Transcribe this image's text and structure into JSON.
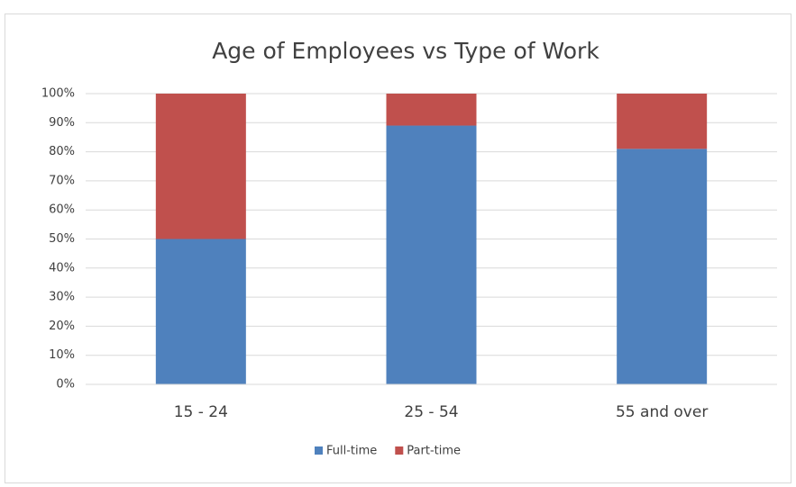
{
  "chart_data": {
    "type": "stacked_bar",
    "title": "Age of Employees vs Type of Work",
    "categories": [
      "15 - 24",
      "25 - 54",
      "55 and over"
    ],
    "series": [
      {
        "name": "Full-time",
        "color": "#4f81bd",
        "values": [
          50,
          89,
          81
        ]
      },
      {
        "name": "Part-time",
        "color": "#c0504d",
        "values": [
          50,
          11,
          19
        ]
      }
    ],
    "ylim": [
      0,
      100
    ],
    "yticks": [
      {
        "value": 0,
        "label": "0%"
      },
      {
        "value": 10,
        "label": "10%"
      },
      {
        "value": 20,
        "label": "20%"
      },
      {
        "value": 30,
        "label": "30%"
      },
      {
        "value": 40,
        "label": "40%"
      },
      {
        "value": 50,
        "label": "50%"
      },
      {
        "value": 60,
        "label": "60%"
      },
      {
        "value": 70,
        "label": "70%"
      },
      {
        "value": 80,
        "label": "80%"
      },
      {
        "value": 90,
        "label": "90%"
      },
      {
        "value": 100,
        "label": "100%"
      }
    ],
    "grid": true,
    "legend": "bottom"
  }
}
